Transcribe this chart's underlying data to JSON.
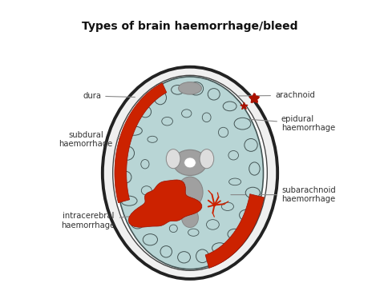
{
  "title": "Types of brain haemorrhage/bleed",
  "title_fontsize": 10,
  "title_fontweight": "bold",
  "background_color": "#ffffff",
  "brain_tissue_color": "#b8d5d5",
  "red_color": "#cc2200",
  "gray_color": "#999999",
  "annotation_color": "#333333",
  "line_color": "#888888",
  "labels": {
    "dura": "dura",
    "arachnoid": "arachnoid",
    "subdural": "subdural\nhaemorrhage",
    "epidural": "epidural\nhaemorrhage",
    "intracerebral": "intracerebral\nhaemorrhage",
    "subarachnoid": "subarachnoid\nhaemorrhage"
  }
}
